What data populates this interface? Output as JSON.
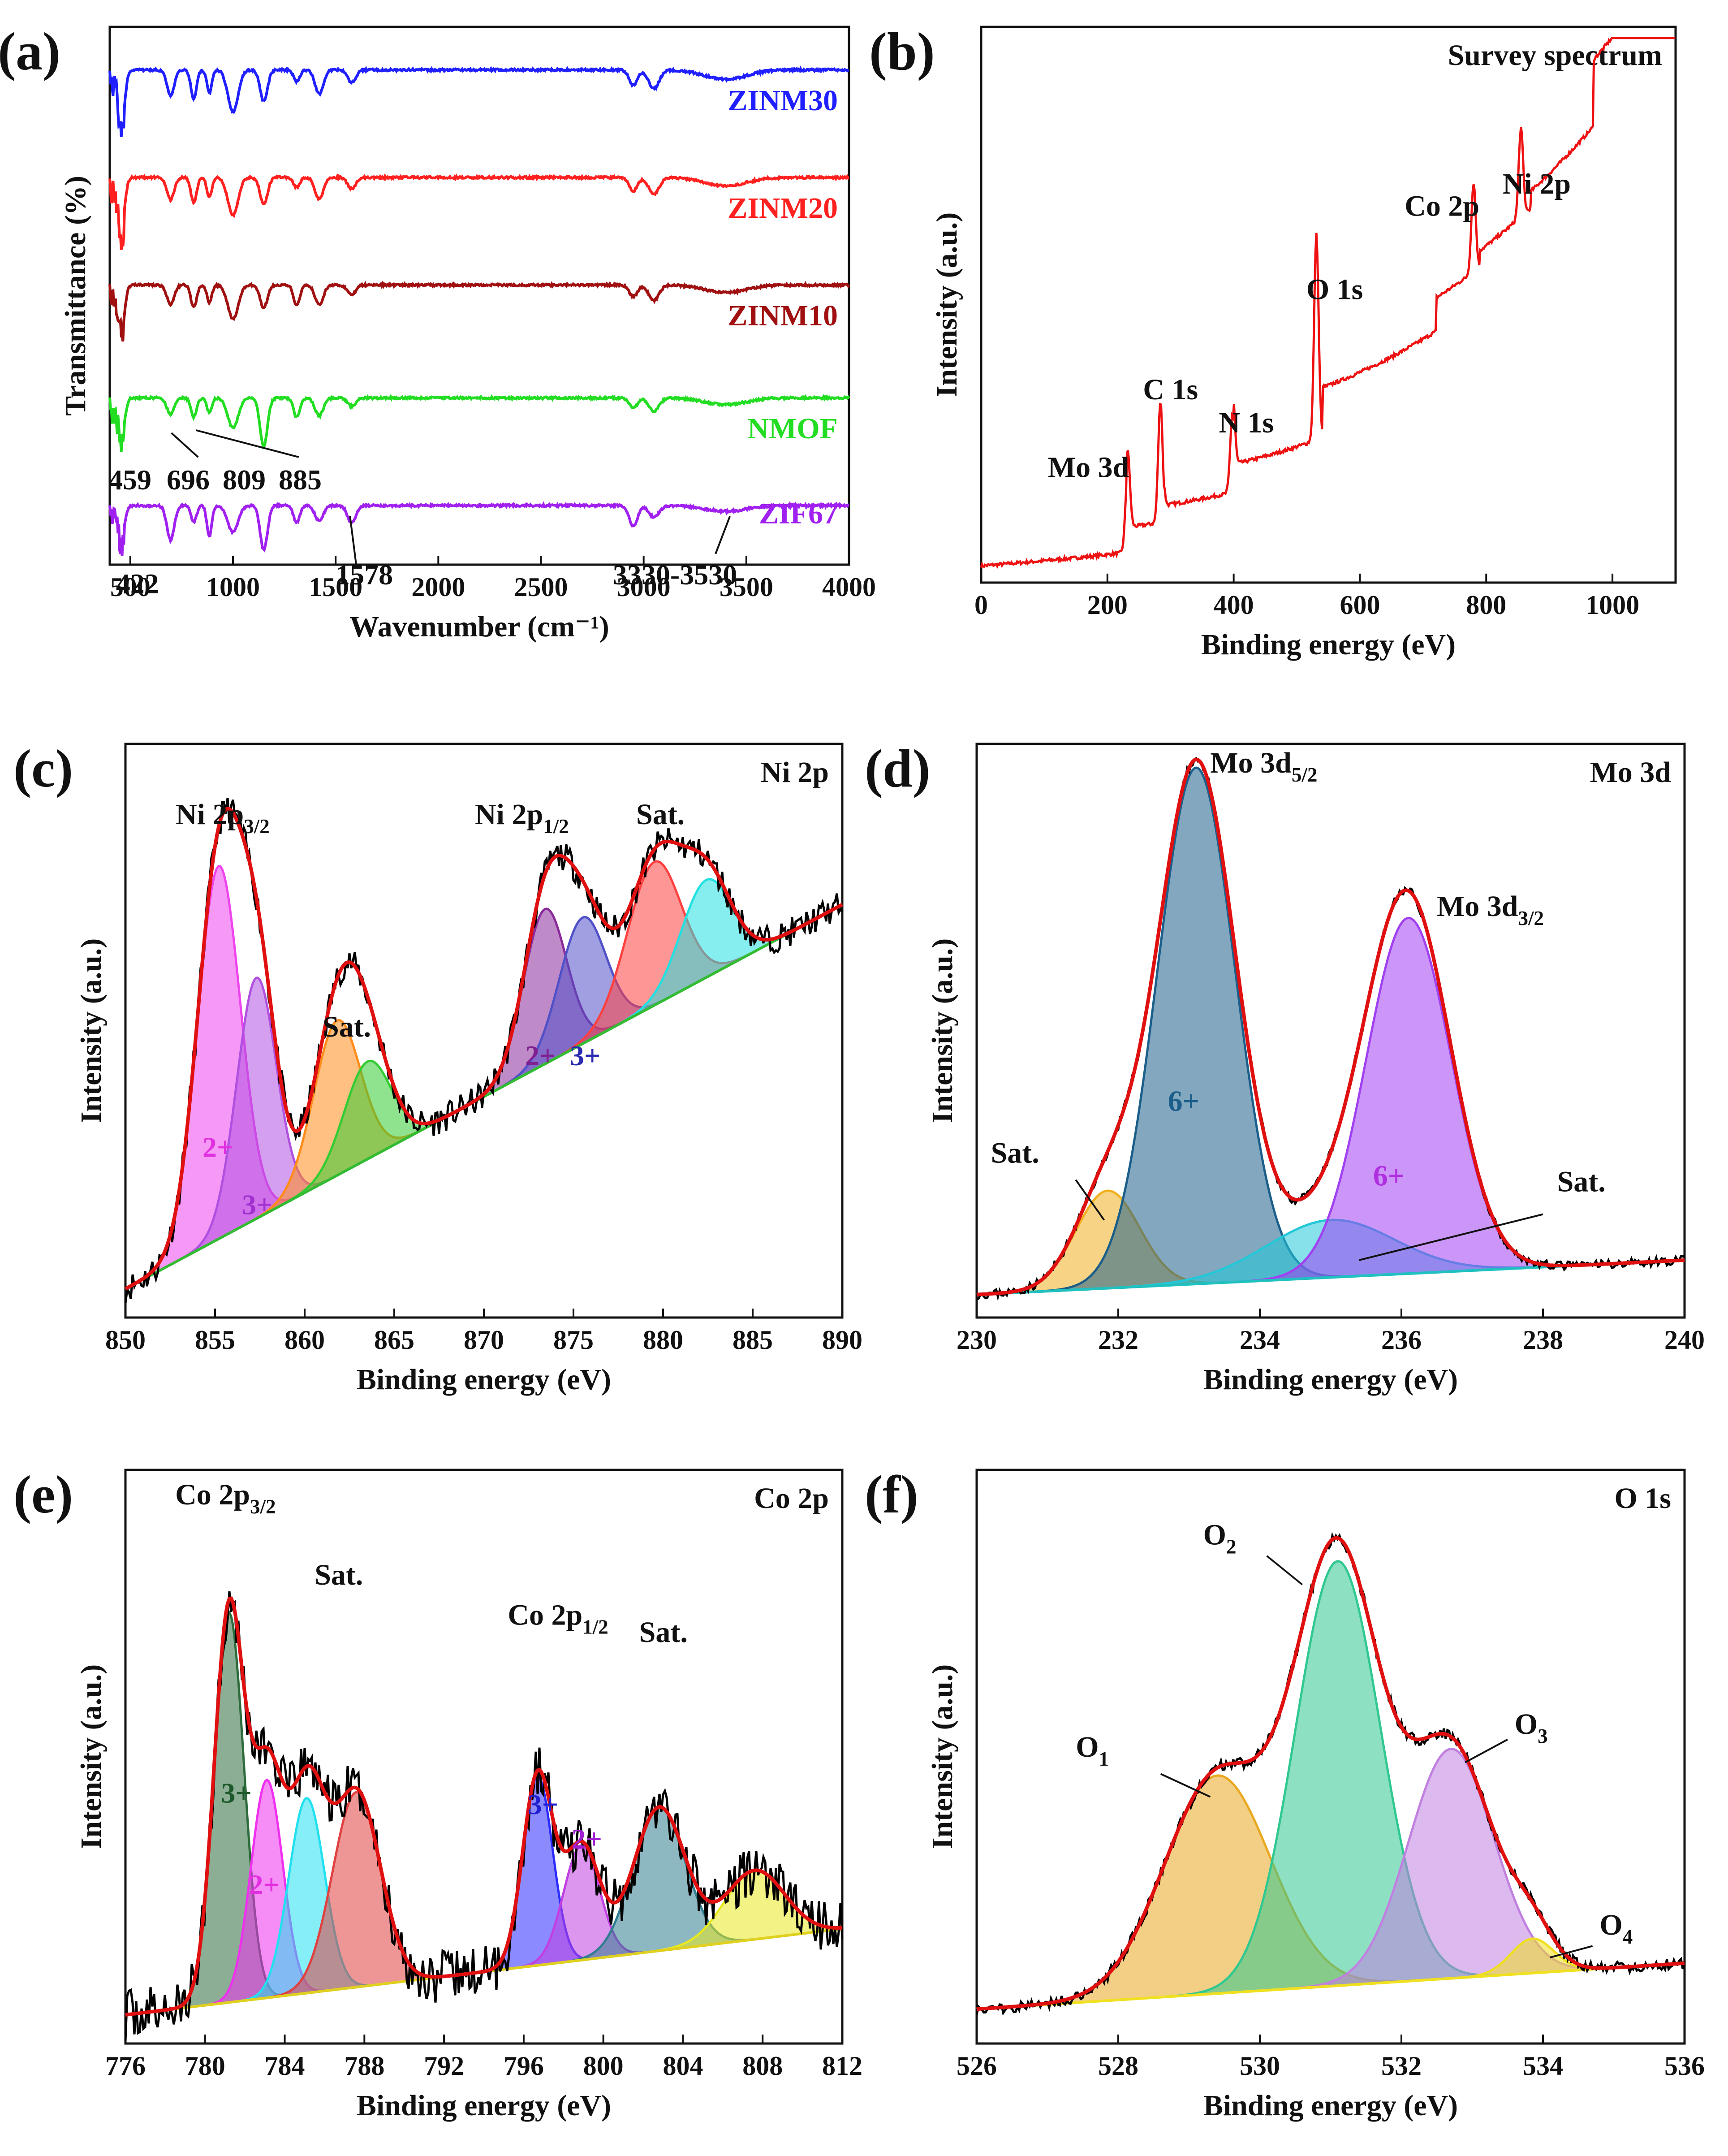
{
  "chart_data": [
    {
      "id": "a",
      "type": "line",
      "panel_label": "(a)",
      "xlabel": "Wavenumber (cm⁻¹)",
      "ylabel": "Transmittance (%)",
      "xlim": [
        400,
        4000
      ],
      "xticks": [
        500,
        1000,
        1500,
        2000,
        2500,
        3000,
        3500,
        4000
      ],
      "series": [
        {
          "name": "ZINM30",
          "color": "#1f1fff",
          "baseline": 0.92
        },
        {
          "name": "ZINM20",
          "color": "#ff2020",
          "baseline": 0.72
        },
        {
          "name": "ZINM10",
          "color": "#a01010",
          "baseline": 0.52
        },
        {
          "name": "NMOF",
          "color": "#22dd22",
          "baseline": 0.31
        },
        {
          "name": "ZIF67",
          "color": "#a020f0",
          "baseline": 0.11
        }
      ],
      "annotations": [
        "459",
        "696",
        "809",
        "885",
        "422",
        "1578",
        "3330-3530"
      ]
    },
    {
      "id": "b",
      "type": "line",
      "panel_label": "(b)",
      "title": "Survey spectrum",
      "xlabel": "Binding energy (eV)",
      "ylabel": "Intensity (a.u.)",
      "xlim": [
        0,
        1100
      ],
      "xticks": [
        0,
        200,
        400,
        600,
        800,
        1000
      ],
      "color": "#ee1111",
      "peaks": [
        {
          "label": "Mo 3d",
          "x": 232
        },
        {
          "label": "C 1s",
          "x": 284
        },
        {
          "label": "N 1s",
          "x": 398
        },
        {
          "label": "O 1s",
          "x": 531
        },
        {
          "label": "Co 2p",
          "x": 780
        },
        {
          "label": "Ni 2p",
          "x": 855
        }
      ]
    },
    {
      "id": "c",
      "type": "area",
      "panel_label": "(c)",
      "title": "Ni 2p",
      "xlabel": "Binding energy (eV)",
      "ylabel": "Intensity (a.u.)",
      "xlim": [
        850,
        890
      ],
      "xticks": [
        850,
        855,
        860,
        865,
        870,
        875,
        880,
        885,
        890
      ],
      "labels": [
        "Ni 2p3/2",
        "Ni 2p1/2",
        "Sat.",
        "Sat.",
        "2+",
        "3+",
        "2+",
        "3+"
      ],
      "label_text": {
        "p32": "Ni 2p",
        "p32_sub": "3/2",
        "p12": "Ni 2p",
        "p12_sub": "1/2",
        "sat": "Sat.",
        "two": "2+",
        "three": "3+"
      },
      "peaks": [
        {
          "name": "Ni2+ 2p3/2",
          "center": 855.2,
          "height": 0.65,
          "sigma": 1.2,
          "color": "#ee44ee"
        },
        {
          "name": "Ni3+ 2p3/2",
          "center": 857.3,
          "height": 0.42,
          "sigma": 1.1,
          "color": "#b050e0"
        },
        {
          "name": "Sat.",
          "center": 861.8,
          "height": 0.27,
          "sigma": 1.3,
          "color": "#ff8c1a"
        },
        {
          "name": "Sat.",
          "center": 863.5,
          "height": 0.17,
          "sigma": 1.3,
          "color": "#33cc33"
        },
        {
          "name": "Ni2+ 2p1/2",
          "center": 873.4,
          "height": 0.27,
          "sigma": 1.2,
          "color": "#8a2a9a"
        },
        {
          "name": "Ni3+ 2p1/2",
          "center": 875.5,
          "height": 0.22,
          "sigma": 1.3,
          "color": "#5050c8"
        },
        {
          "name": "Sat.",
          "center": 879.5,
          "height": 0.25,
          "sigma": 1.5,
          "color": "#ff4040"
        },
        {
          "name": "Sat.",
          "center": 882.4,
          "height": 0.17,
          "sigma": 1.4,
          "color": "#22e0e0"
        }
      ],
      "background": [
        0.05,
        0.72
      ],
      "colors": {
        "envelope": "#e01010",
        "data": "#000000",
        "background": "#33bb33"
      }
    },
    {
      "id": "d",
      "type": "area",
      "panel_label": "(d)",
      "title": "Mo 3d",
      "xlabel": "Binding energy (eV)",
      "ylabel": "Intensity (a.u.)",
      "xlim": [
        230,
        240
      ],
      "xticks": [
        230,
        232,
        234,
        236,
        238,
        240
      ],
      "label_text": {
        "d52": "Mo 3d",
        "d52_sub": "5/2",
        "d32": "Mo 3d",
        "d32_sub": "3/2",
        "sat": "Sat.",
        "six": "6+"
      },
      "peaks": [
        {
          "name": "Sat.",
          "center": 231.85,
          "height": 0.17,
          "sigma": 0.45,
          "color": "#f0b020"
        },
        {
          "name": "Mo6+ 3d5/2",
          "center": 233.1,
          "height": 0.9,
          "sigma": 0.55,
          "color": "#1b5e8a"
        },
        {
          "name": "Sat.",
          "center": 235.0,
          "height": 0.1,
          "sigma": 0.9,
          "color": "#22c8d8"
        },
        {
          "name": "Mo6+ 3d3/2",
          "center": 236.1,
          "height": 0.62,
          "sigma": 0.6,
          "color": "#a040f0"
        }
      ],
      "background": [
        0.04,
        0.1
      ],
      "colors": {
        "envelope": "#e01010",
        "data": "#000000",
        "background": "#20c0c0"
      }
    },
    {
      "id": "e",
      "type": "area",
      "panel_label": "(e)",
      "title": "Co 2p",
      "xlabel": "Binding energy (eV)",
      "ylabel": "Intensity (a.u.)",
      "xlim": [
        776,
        812
      ],
      "xticks": [
        776,
        780,
        784,
        788,
        792,
        796,
        800,
        804,
        808,
        812
      ],
      "label_text": {
        "p32": "Co 2p",
        "p32_sub": "3/2",
        "p12": "Co 2p",
        "p12_sub": "1/2",
        "sat": "Sat.",
        "two": "2+",
        "three": "3+"
      },
      "peaks": [
        {
          "name": "Co3+ 2p3/2",
          "center": 781.2,
          "height": 0.68,
          "sigma": 0.75,
          "color": "#2e6b3c"
        },
        {
          "name": "Co2+ 2p3/2",
          "center": 783.1,
          "height": 0.38,
          "sigma": 0.8,
          "color": "#ee30ee"
        },
        {
          "name": "Sat.",
          "center": 785.1,
          "height": 0.34,
          "sigma": 0.9,
          "color": "#22e0f0"
        },
        {
          "name": "Sat.",
          "center": 787.6,
          "height": 0.34,
          "sigma": 1.2,
          "color": "#e04040"
        },
        {
          "name": "Co3+ 2p1/2",
          "center": 796.7,
          "height": 0.33,
          "sigma": 0.75,
          "color": "#2b2bff"
        },
        {
          "name": "Co2+ 2p1/2",
          "center": 798.9,
          "height": 0.2,
          "sigma": 0.9,
          "color": "#c040e0"
        },
        {
          "name": "Sat.",
          "center": 802.8,
          "height": 0.25,
          "sigma": 1.3,
          "color": "#2f7d8f"
        },
        {
          "name": "Sat.",
          "center": 807.6,
          "height": 0.12,
          "sigma": 1.5,
          "color": "#e8e820"
        }
      ],
      "background": [
        0.05,
        0.2
      ],
      "colors": {
        "envelope": "#e01010",
        "data": "#000000",
        "background": "#e0d020"
      }
    },
    {
      "id": "f",
      "type": "area",
      "panel_label": "(f)",
      "title": "O 1s",
      "xlabel": "Binding energy (eV)",
      "ylabel": "Intensity (a.u.)",
      "xlim": [
        526,
        536
      ],
      "xticks": [
        526,
        528,
        530,
        532,
        534,
        536
      ],
      "label_text": {
        "o1": "O",
        "o1_sub": "1",
        "o2": "O",
        "o2_sub": "2",
        "o3": "O",
        "o3_sub": "3",
        "o4": "O",
        "o4_sub": "4"
      },
      "peaks": [
        {
          "name": "O1",
          "center": 529.4,
          "height": 0.38,
          "sigma": 0.75,
          "color": "#e8a820"
        },
        {
          "name": "O2",
          "center": 531.1,
          "height": 0.74,
          "sigma": 0.6,
          "color": "#30c890"
        },
        {
          "name": "O3",
          "center": 532.7,
          "height": 0.4,
          "sigma": 0.6,
          "color": "#c080e0"
        },
        {
          "name": "O4",
          "center": 533.85,
          "height": 0.06,
          "sigma": 0.3,
          "color": "#f0e020"
        }
      ],
      "background": [
        0.06,
        0.14
      ],
      "colors": {
        "envelope": "#e01010",
        "data": "#000000",
        "background": "#f0e020"
      }
    }
  ]
}
